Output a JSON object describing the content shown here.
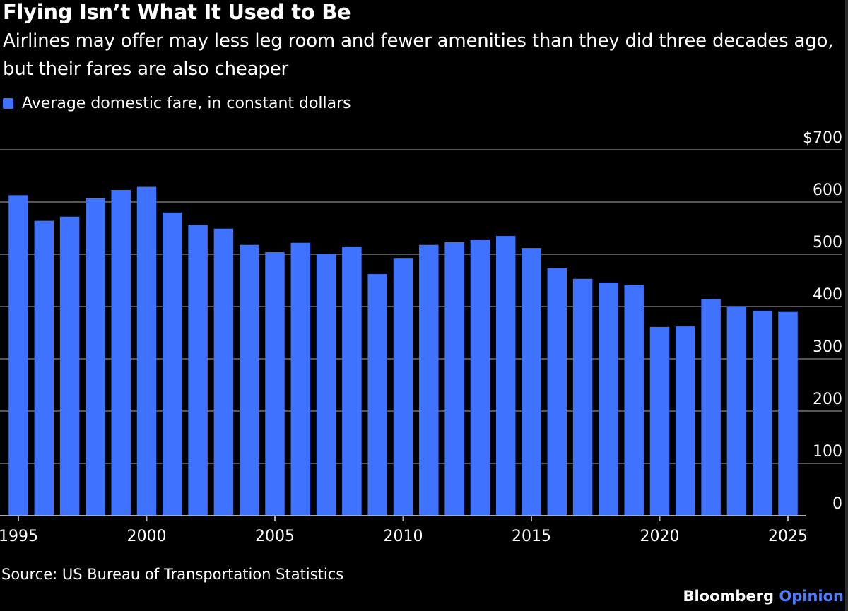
{
  "title": "Flying Isn’t What It Used to Be",
  "subtitle": "Airlines may offer may less leg room and fewer amenities than they did three decades ago, but their fares are also cheaper",
  "source": "Source: US Bureau of Transportation Statistics",
  "brand": {
    "name": "Bloomberg",
    "suffix": "Opinion"
  },
  "colors": {
    "bar": "#3f73ff",
    "background": "#000000",
    "grid": "#555555",
    "brand_accent": "#4d7cff"
  },
  "chart_data": {
    "type": "bar",
    "title": "Flying Isn’t What It Used to Be",
    "legend": [
      "Average domestic fare, in constant dollars"
    ],
    "legend_position": "top-left",
    "x": [
      1995,
      1996,
      1997,
      1998,
      1999,
      2000,
      2001,
      2002,
      2003,
      2004,
      2005,
      2006,
      2007,
      2008,
      2009,
      2010,
      2011,
      2012,
      2013,
      2014,
      2015,
      2016,
      2017,
      2018,
      2019,
      2020,
      2021,
      2022,
      2023,
      2024,
      2025
    ],
    "series": [
      {
        "name": "Average domestic fare, in constant dollars",
        "values": [
          613,
          564,
          572,
          607,
          623,
          629,
          580,
          556,
          549,
          518,
          504,
          522,
          501,
          515,
          462,
          493,
          518,
          523,
          527,
          535,
          512,
          473,
          453,
          446,
          441,
          361,
          362,
          414,
          400,
          392,
          391
        ]
      }
    ],
    "x_ticks": [
      "1995",
      "2000",
      "2005",
      "2010",
      "2015",
      "2020",
      "2025"
    ],
    "y_ticks": [
      "$700",
      "600",
      "500",
      "400",
      "300",
      "200",
      "100",
      "0"
    ],
    "y_tick_values": [
      700,
      600,
      500,
      400,
      300,
      200,
      100,
      0
    ],
    "ylim": [
      0,
      700
    ],
    "y_axis_side": "right",
    "grid": true,
    "xlabel": "",
    "ylabel": ""
  }
}
